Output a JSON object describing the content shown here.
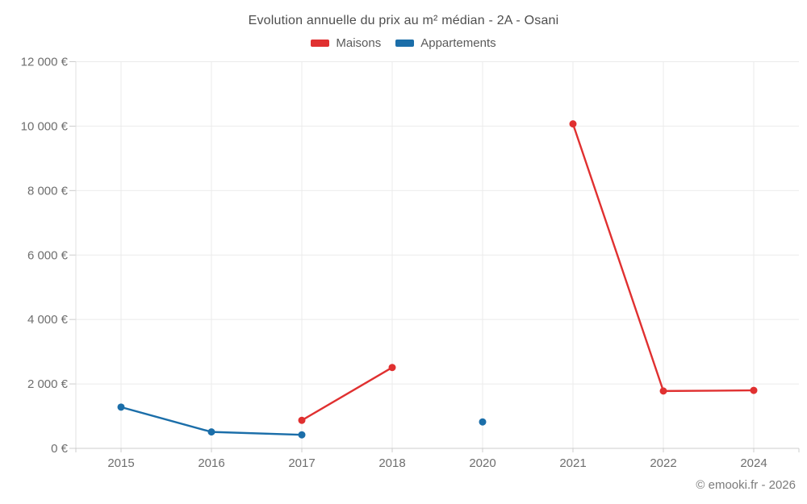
{
  "title": "Evolution annuelle du prix au m² médian - 2A - Osani",
  "legend": {
    "items": [
      {
        "label": "Maisons",
        "color": "#e03030"
      },
      {
        "label": "Appartements",
        "color": "#1b6ea9"
      }
    ]
  },
  "footer": {
    "credit": "© emooki.fr - 2026"
  },
  "colors": {
    "grid": "#ebebeb",
    "axis": "#cccccc",
    "y_axis_line": "#e0e0e0",
    "title_text": "#4e4e4e",
    "tick_text": "#6e6e6e",
    "footer_text": "#7b7b7b",
    "background": "#ffffff",
    "maisons": "#e03030",
    "appartements": "#1b6ea9"
  },
  "chart_data": {
    "type": "line",
    "title": "Evolution annuelle du prix au m² médian - 2A - Osani",
    "categories": [
      "2015",
      "2016",
      "2017",
      "2018",
      "2020",
      "2021",
      "2022",
      "2024"
    ],
    "series": [
      {
        "name": "Maisons",
        "color": "#e03030",
        "values": [
          null,
          null,
          870,
          2510,
          null,
          10070,
          1780,
          1800
        ]
      },
      {
        "name": "Appartements",
        "color": "#1b6ea9",
        "values": [
          1280,
          510,
          420,
          null,
          820,
          null,
          null,
          null
        ]
      }
    ],
    "xlabel": "",
    "ylabel": "",
    "ylim": [
      0,
      12000
    ],
    "y_ticks": [
      {
        "value": 0,
        "label": "0 €"
      },
      {
        "value": 2000,
        "label": "2 000 €"
      },
      {
        "value": 4000,
        "label": "4 000 €"
      },
      {
        "value": 6000,
        "label": "6 000 €"
      },
      {
        "value": 8000,
        "label": "8 000 €"
      },
      {
        "value": 10000,
        "label": "10 000 €"
      },
      {
        "value": 12000,
        "label": "12 000 €"
      }
    ],
    "grid": true,
    "legend_position": "top",
    "line_gaps": "nulls break the line; 2020 Appartements and 2021 Maisons start as isolated/new segments"
  }
}
